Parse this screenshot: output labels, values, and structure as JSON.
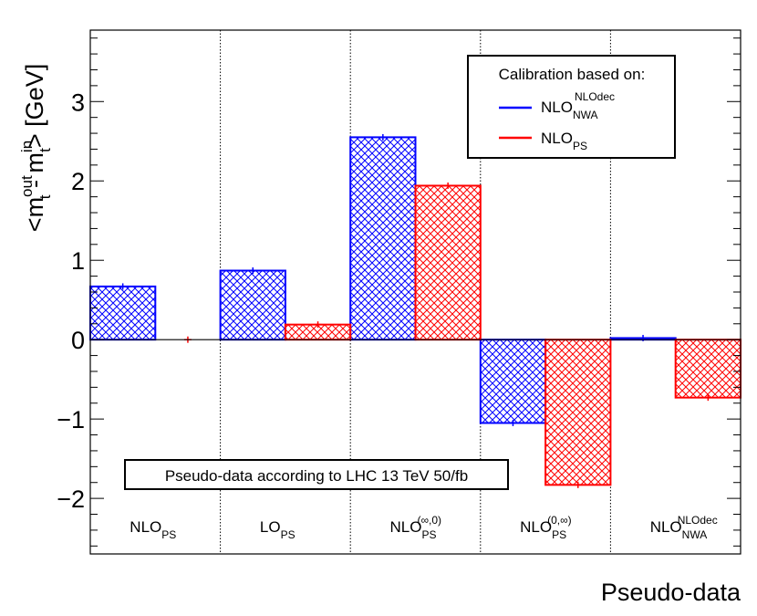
{
  "chart_data": {
    "type": "bar",
    "xlabel": "Pseudo-data",
    "ylabel": {
      "prefix": "<m",
      "out_sup": "out",
      "t_sub": "t",
      "minus": " - m",
      "in_sup": "in",
      "in_sub": "t",
      "suffix": "> [GeV]"
    },
    "ylim": [
      -2.7,
      3.9
    ],
    "yticks": [
      -2,
      -1,
      0,
      1,
      2,
      3
    ],
    "ytick_labels": [
      "−2",
      "−1",
      "0",
      "1",
      "2",
      "3"
    ],
    "grid": false,
    "categories": [
      {
        "base": "NLO",
        "sub": "PS",
        "sup": ""
      },
      {
        "base": "LO",
        "sub": "PS",
        "sup": ""
      },
      {
        "base": "NLO",
        "sub": "PS",
        "sup": "(∞,0)"
      },
      {
        "base": "NLO",
        "sub": "PS",
        "sup": "(0,∞)"
      },
      {
        "base": "NLO",
        "sub": "NWA",
        "sup": "NLOdec"
      }
    ],
    "series": [
      {
        "name": "NLO_NWA^NLOdec",
        "color": "#0000ff",
        "hatch": "cross",
        "values": [
          0.67,
          0.87,
          2.55,
          -1.05,
          0.02
        ],
        "errors": [
          0.04,
          0.04,
          0.04,
          0.04,
          0.04
        ]
      },
      {
        "name": "NLO_PS",
        "color": "#ff0000",
        "hatch": "cross",
        "values": [
          0.0,
          0.19,
          1.94,
          -1.83,
          -0.73
        ],
        "errors": [
          0.04,
          0.04,
          0.04,
          0.04,
          0.04
        ]
      }
    ],
    "legend": {
      "title": "Calibration based on:",
      "placement": "top-right",
      "entries": [
        {
          "base": "NLO",
          "sub": "NWA",
          "sup": "NLOdec",
          "color": "#0000ff"
        },
        {
          "base": "NLO",
          "sub": "PS",
          "sup": "",
          "color": "#ff0000"
        }
      ]
    },
    "annotation": "Pseudo-data according to LHC 13 TeV 50/fb"
  }
}
